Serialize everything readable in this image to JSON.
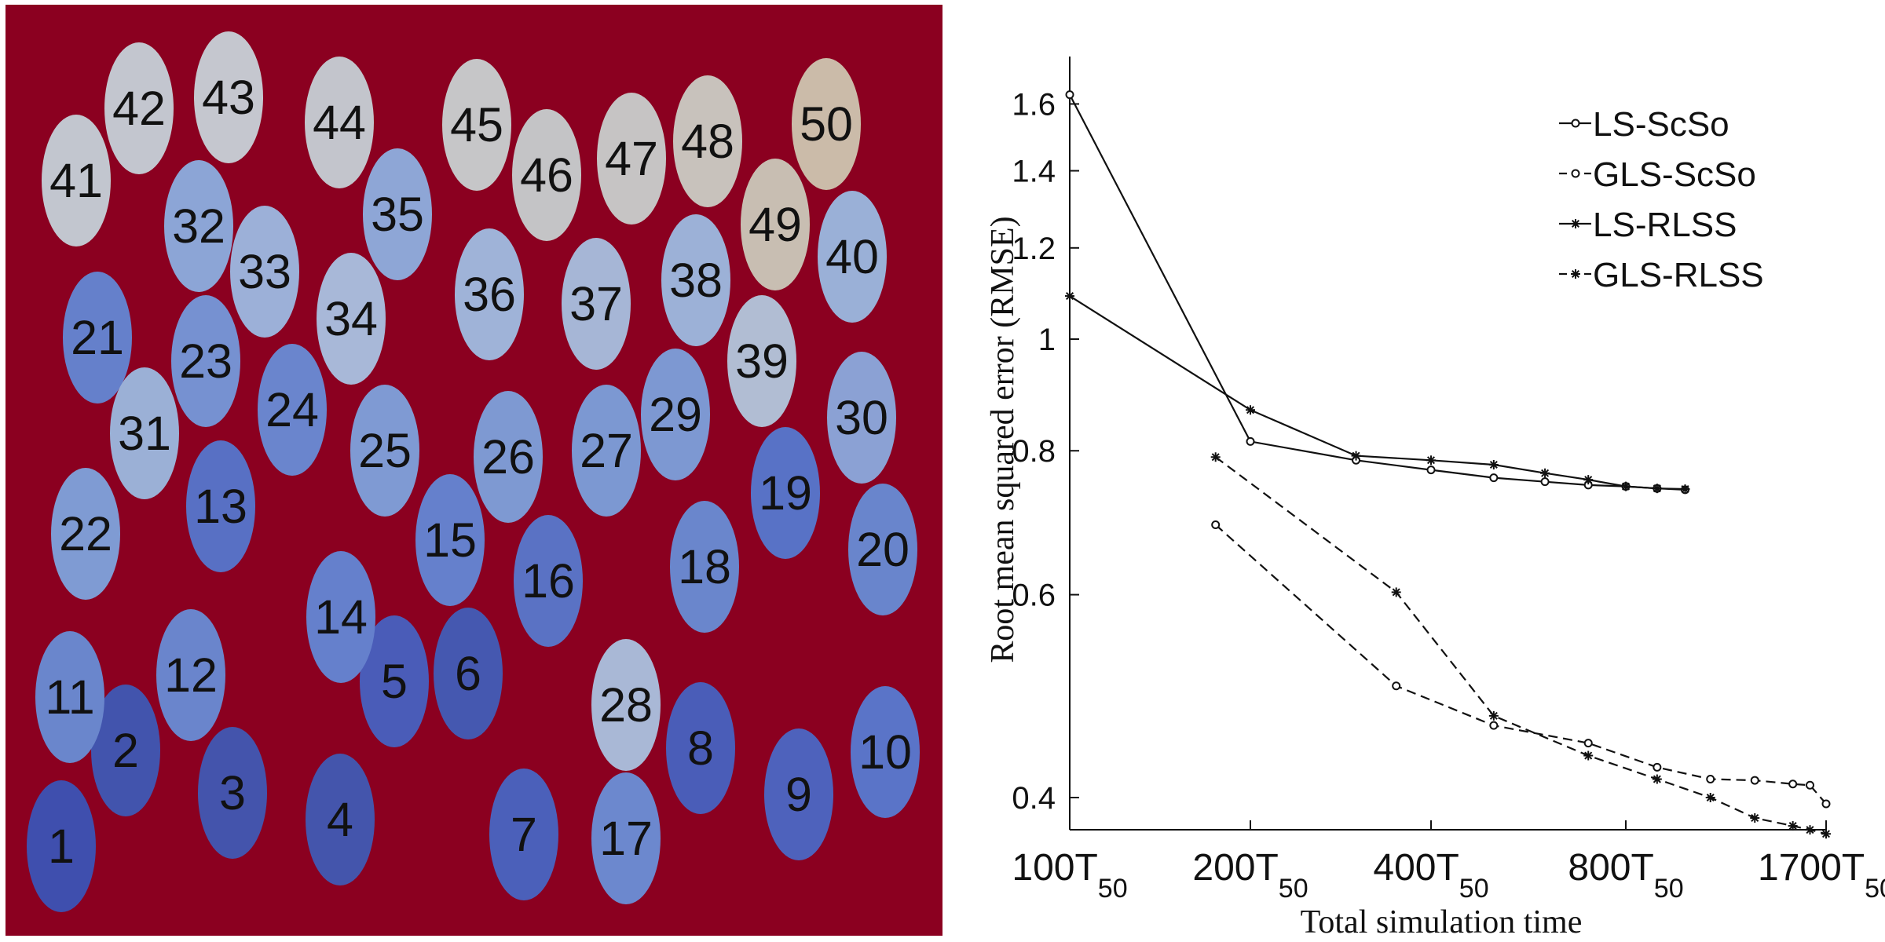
{
  "panel": {
    "background": "#8b0020"
  },
  "ellipses": [
    {
      "label": "1",
      "color": "#3f4fae"
    },
    {
      "label": "2",
      "color": "#4254ad"
    },
    {
      "label": "3",
      "color": "#4454ac"
    },
    {
      "label": "4",
      "color": "#4455ac"
    },
    {
      "label": "5",
      "color": "#4a5cb8"
    },
    {
      "label": "6",
      "color": "#4558b0"
    },
    {
      "label": "7",
      "color": "#4b60ba"
    },
    {
      "label": "8",
      "color": "#4a5db8"
    },
    {
      "label": "9",
      "color": "#4e62bc"
    },
    {
      "label": "10",
      "color": "#5a74c8"
    },
    {
      "label": "11",
      "color": "#6a86cc"
    },
    {
      "label": "12",
      "color": "#6a85cc"
    },
    {
      "label": "13",
      "color": "#5870c4"
    },
    {
      "label": "14",
      "color": "#6580cc"
    },
    {
      "label": "15",
      "color": "#6580cc"
    },
    {
      "label": "16",
      "color": "#5a72c4"
    },
    {
      "label": "17",
      "color": "#6c88ce"
    },
    {
      "label": "18",
      "color": "#6a86cc"
    },
    {
      "label": "19",
      "color": "#5872c6"
    },
    {
      "label": "20",
      "color": "#6985cc"
    },
    {
      "label": "21",
      "color": "#6580cb"
    },
    {
      "label": "22",
      "color": "#7f9bd3"
    },
    {
      "label": "23",
      "color": "#7691d1"
    },
    {
      "label": "24",
      "color": "#6a85cd"
    },
    {
      "label": "25",
      "color": "#7f9ad3"
    },
    {
      "label": "26",
      "color": "#7e99d2"
    },
    {
      "label": "27",
      "color": "#7c98d2"
    },
    {
      "label": "28",
      "color": "#a9b8d6"
    },
    {
      "label": "29",
      "color": "#7d98d2"
    },
    {
      "label": "30",
      "color": "#8ba1d4"
    },
    {
      "label": "31",
      "color": "#9bb0d6"
    },
    {
      "label": "32",
      "color": "#8ca5d6"
    },
    {
      "label": "33",
      "color": "#9cb0d8"
    },
    {
      "label": "34",
      "color": "#a8b8d8"
    },
    {
      "label": "35",
      "color": "#8ea6d6"
    },
    {
      "label": "36",
      "color": "#9fb3d8"
    },
    {
      "label": "37",
      "color": "#a6b6d6"
    },
    {
      "label": "38",
      "color": "#9cb1d7"
    },
    {
      "label": "39",
      "color": "#b1bdd3"
    },
    {
      "label": "40",
      "color": "#9ab0d7"
    },
    {
      "label": "41",
      "color": "#c2c6cf"
    },
    {
      "label": "42",
      "color": "#c3c6cf"
    },
    {
      "label": "43",
      "color": "#c5c7cf"
    },
    {
      "label": "44",
      "color": "#c3c5cc"
    },
    {
      "label": "45",
      "color": "#c6c6c8"
    },
    {
      "label": "46",
      "color": "#c4c4c6"
    },
    {
      "label": "47",
      "color": "#c6c4c4"
    },
    {
      "label": "48",
      "color": "#c8c2bc"
    },
    {
      "label": "49",
      "color": "#c8beb2"
    },
    {
      "label": "50",
      "color": "#cbbba9"
    }
  ],
  "chart_data": {
    "type": "line",
    "xlabel": "Total simulation time",
    "ylabel": "Root mean squared error (RMSE)",
    "x_scale": "log",
    "y_scale": "log",
    "xlim": [
      100,
      1700
    ],
    "ylim": [
      0.38,
      1.65
    ],
    "x_ticks": [
      {
        "base": "100T",
        "sub": "50",
        "value": 100
      },
      {
        "base": "200T",
        "sub": "50",
        "value": 200
      },
      {
        "base": "400T",
        "sub": "50",
        "value": 400
      },
      {
        "base": "800T",
        "sub": "50",
        "value": 800
      },
      {
        "base": "1700T",
        "sub": "50",
        "value": 1700
      }
    ],
    "y_ticks": [
      {
        "label": "0.4",
        "value": 0.4
      },
      {
        "label": "0.6",
        "value": 0.6
      },
      {
        "label": "0.8",
        "value": 0.8
      },
      {
        "label": "1",
        "value": 1.0
      },
      {
        "label": "1.2",
        "value": 1.2
      },
      {
        "label": "1.4",
        "value": 1.4
      },
      {
        "label": "1.6",
        "value": 1.6
      }
    ],
    "legend_position": "top-right",
    "series": [
      {
        "name": "LS-ScSo",
        "line": "solid",
        "marker": "circle",
        "points": [
          [
            100,
            1.63
          ],
          [
            200,
            0.815
          ],
          [
            300,
            0.785
          ],
          [
            400,
            0.77
          ],
          [
            500,
            0.758
          ],
          [
            600,
            0.752
          ],
          [
            700,
            0.747
          ],
          [
            800,
            0.745
          ],
          [
            900,
            0.742
          ],
          [
            1000,
            0.74
          ]
        ]
      },
      {
        "name": "GLS-ScSo",
        "line": "dashed",
        "marker": "circle",
        "points": [
          [
            175,
            0.69
          ],
          [
            350,
            0.5
          ],
          [
            500,
            0.462
          ],
          [
            700,
            0.446
          ],
          [
            900,
            0.425
          ],
          [
            1100,
            0.415
          ],
          [
            1300,
            0.414
          ],
          [
            1500,
            0.411
          ],
          [
            1600,
            0.41
          ],
          [
            1700,
            0.395
          ]
        ]
      },
      {
        "name": "LS-RLSS",
        "line": "solid",
        "marker": "star",
        "points": [
          [
            100,
            1.09
          ],
          [
            200,
            0.868
          ],
          [
            300,
            0.792
          ],
          [
            400,
            0.785
          ],
          [
            500,
            0.778
          ],
          [
            600,
            0.765
          ],
          [
            700,
            0.755
          ],
          [
            800,
            0.745
          ],
          [
            900,
            0.742
          ],
          [
            1000,
            0.741
          ]
        ]
      },
      {
        "name": "GLS-RLSS",
        "line": "dashed",
        "marker": "star",
        "points": [
          [
            175,
            0.79
          ],
          [
            350,
            0.603
          ],
          [
            500,
            0.471
          ],
          [
            700,
            0.435
          ],
          [
            900,
            0.415
          ],
          [
            1100,
            0.4
          ],
          [
            1300,
            0.384
          ],
          [
            1500,
            0.378
          ],
          [
            1600,
            0.375
          ],
          [
            1700,
            0.372
          ]
        ]
      }
    ]
  }
}
